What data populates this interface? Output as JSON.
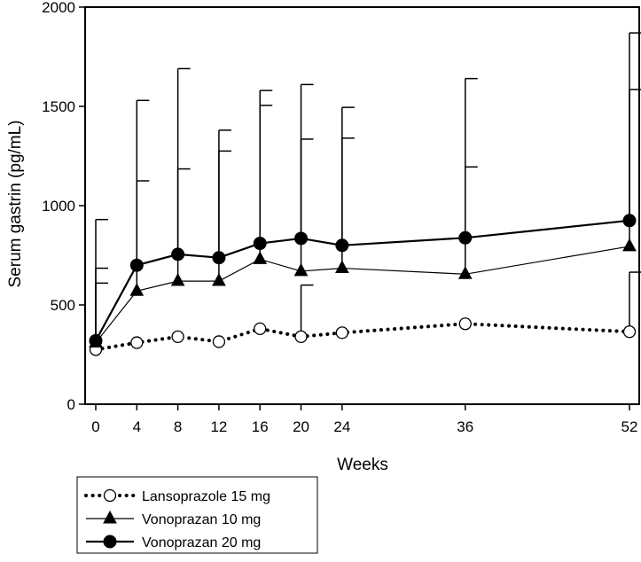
{
  "chart_data": {
    "type": "line",
    "title": "",
    "xlabel": "Weeks",
    "ylabel": "Serum gastrin (pg/mL)",
    "x": [
      0,
      4,
      8,
      12,
      16,
      20,
      24,
      36,
      52
    ],
    "x_tick_labels": [
      "0",
      "4",
      "8",
      "12",
      "16",
      "20",
      "24",
      "36",
      "52"
    ],
    "y_ticks": [
      0,
      500,
      1000,
      1500,
      2000
    ],
    "y_tick_labels": [
      "0",
      "500",
      "1000",
      "1500",
      "2000"
    ],
    "ylim": [
      0,
      2000
    ],
    "grid": false,
    "legend_position": "bottom-left",
    "series": [
      {
        "name": "Lansoprazole 15 mg",
        "style": "dotted",
        "marker": "open-circle",
        "color": "#000000",
        "values": [
          275,
          310,
          340,
          315,
          380,
          340,
          360,
          405,
          365
        ],
        "error_upper": [
          610,
          null,
          null,
          null,
          null,
          600,
          null,
          null,
          665
        ]
      },
      {
        "name": "Vonoprazan 10 mg",
        "style": "thin",
        "marker": "filled-triangle",
        "color": "#000000",
        "values": [
          310,
          570,
          620,
          620,
          730,
          670,
          685,
          655,
          795
        ],
        "error_upper": [
          685,
          1125,
          1185,
          1275,
          1505,
          1335,
          1340,
          1195,
          1585
        ]
      },
      {
        "name": "Vonoprazan 20 mg",
        "style": "thick",
        "marker": "filled-circle",
        "color": "#000000",
        "values": [
          320,
          700,
          755,
          738,
          810,
          835,
          800,
          838,
          925
        ],
        "error_upper": [
          930,
          1530,
          1690,
          1380,
          1580,
          1610,
          1495,
          1640,
          1870
        ]
      }
    ]
  }
}
